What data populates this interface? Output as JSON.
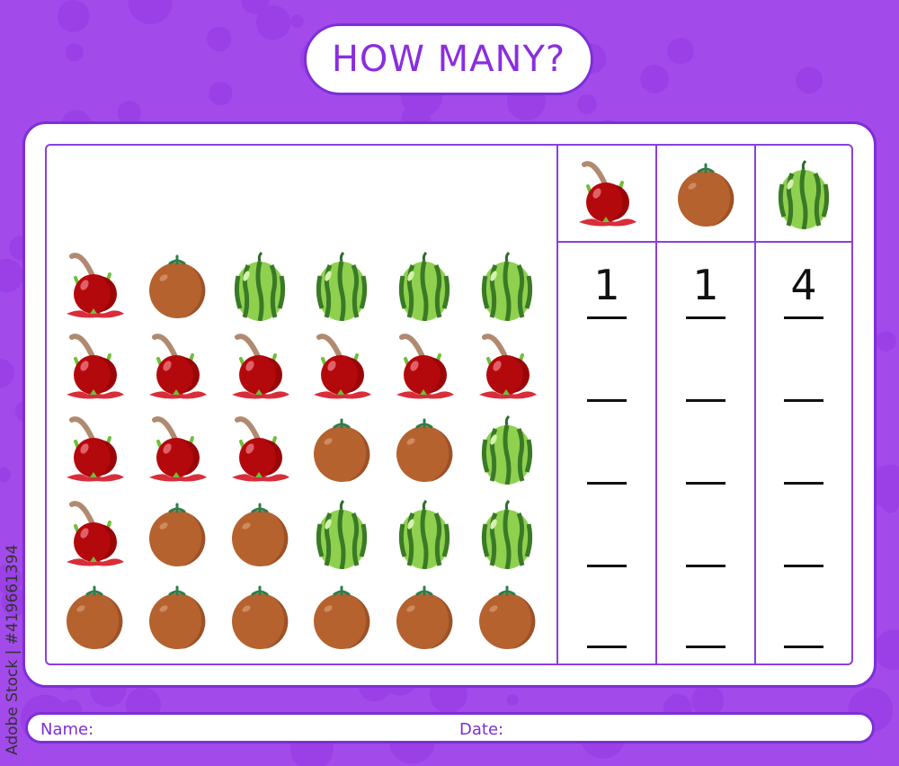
{
  "title": "HOW MANY?",
  "colors": {
    "background": "#a24bea",
    "border": "#7d2fd8",
    "title": "#8a2ee0"
  },
  "fruits": {
    "dragon": "dragon-fruit-icon",
    "coconut": "coconut-icon",
    "watermelon": "watermelon-icon"
  },
  "grid": [
    [
      "dragon",
      "coconut",
      "watermelon",
      "watermelon",
      "watermelon",
      "watermelon"
    ],
    [
      "dragon",
      "dragon",
      "dragon",
      "dragon",
      "dragon",
      "dragon"
    ],
    [
      "dragon",
      "dragon",
      "dragon",
      "coconut",
      "coconut",
      "watermelon"
    ],
    [
      "dragon",
      "coconut",
      "coconut",
      "watermelon",
      "watermelon",
      "watermelon"
    ],
    [
      "coconut",
      "coconut",
      "coconut",
      "coconut",
      "coconut",
      "coconut"
    ]
  ],
  "answer_columns": [
    {
      "fruit": "dragon",
      "answers": [
        "1",
        "",
        "",
        "",
        ""
      ]
    },
    {
      "fruit": "coconut",
      "answers": [
        "1",
        "",
        "",
        "",
        ""
      ]
    },
    {
      "fruit": "watermelon",
      "answers": [
        "4",
        "",
        "",
        "",
        ""
      ]
    }
  ],
  "footer": {
    "name_label": "Name:",
    "date_label": "Date:"
  },
  "watermark": "Adobe Stock | #419661394"
}
